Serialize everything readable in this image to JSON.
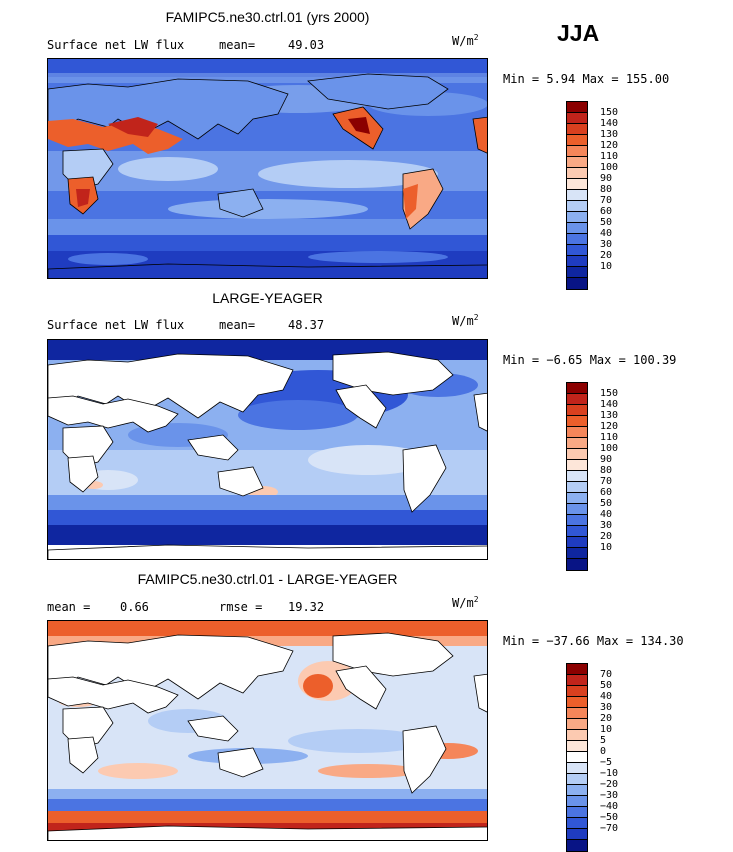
{
  "season": "JJA",
  "units_label": "W/m",
  "units_exp": "2",
  "land_color": "#ffffff",
  "panels": [
    {
      "title": "FAMIPC5.ne30.ctrl.01 (yrs 2000)",
      "left_label": "Surface net LW flux",
      "stat_label": "mean=",
      "stat_value": "49.03",
      "minmax": "Min =   5.94 Max = 155.00",
      "land_filled": true,
      "cb_colors": [
        "#8b0000",
        "#c1241b",
        "#d9401f",
        "#ec5f2b",
        "#f5865a",
        "#f9a985",
        "#fccab1",
        "#fde6d9",
        "#d8e4f7",
        "#b4cdf5",
        "#8cb0f0",
        "#6a93ea",
        "#4b74e2",
        "#3157d6",
        "#1f3cc0",
        "#0f26a0",
        "#081485"
      ],
      "cb_labels": [
        "150",
        "140",
        "130",
        "120",
        "110",
        "100",
        "90",
        "80",
        "70",
        "60",
        "50",
        "40",
        "30",
        "20",
        "10"
      ]
    },
    {
      "title": "LARGE-YEAGER",
      "left_label": "Surface net LW flux",
      "stat_label": "mean=",
      "stat_value": "48.37",
      "minmax": "Min =  −6.65 Max = 100.39",
      "land_filled": false,
      "cb_colors": [
        "#8b0000",
        "#c1241b",
        "#d9401f",
        "#ec5f2b",
        "#f5865a",
        "#f9a985",
        "#fccab1",
        "#fde6d9",
        "#d8e4f7",
        "#b4cdf5",
        "#8cb0f0",
        "#6a93ea",
        "#4b74e2",
        "#3157d6",
        "#1f3cc0",
        "#0f26a0",
        "#081485"
      ],
      "cb_labels": [
        "150",
        "140",
        "130",
        "120",
        "110",
        "100",
        "90",
        "80",
        "70",
        "60",
        "50",
        "40",
        "30",
        "20",
        "10"
      ]
    },
    {
      "title": "FAMIPC5.ne30.ctrl.01 - LARGE-YEAGER",
      "left_label": "mean =",
      "left_value": "0.66",
      "stat_label": "rmse =",
      "stat_value": "19.32",
      "minmax": "Min = −37.66 Max = 134.30",
      "land_filled": false,
      "cb_colors": [
        "#8b0000",
        "#c1241b",
        "#d9401f",
        "#ec5f2b",
        "#f5865a",
        "#f9a985",
        "#fccab1",
        "#fde6d9",
        "#ffffff",
        "#d8e4f7",
        "#b4cdf5",
        "#8cb0f0",
        "#6a93ea",
        "#4b74e2",
        "#3157d6",
        "#1f3cc0",
        "#081485"
      ],
      "cb_labels": [
        "70",
        "50",
        "40",
        "30",
        "20",
        "10",
        "5",
        "0",
        "−5",
        "−10",
        "−20",
        "−30",
        "−40",
        "−50",
        "−70"
      ]
    }
  ]
}
